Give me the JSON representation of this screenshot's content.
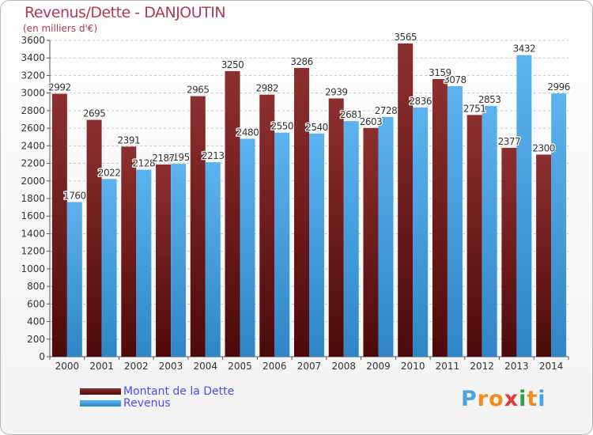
{
  "title": "Revenus/Dette - DANJOUTIN",
  "subtitle": "(en milliers d'€)",
  "logo": {
    "text": "Proxiti",
    "letters": [
      "P",
      "r",
      "o",
      "x",
      "i",
      "t",
      "i"
    ],
    "colors": [
      "#4aa3df",
      "#f28c1e",
      "#f28c1e",
      "#e23b3b",
      "#2e9e44",
      "#f28c1e",
      "#4aa3df"
    ]
  },
  "chart_data": {
    "type": "bar",
    "categories": [
      "2000",
      "2001",
      "2002",
      "2003",
      "2004",
      "2005",
      "2006",
      "2007",
      "2008",
      "2009",
      "2010",
      "2011",
      "2012",
      "2013",
      "2014"
    ],
    "series": [
      {
        "name": "Montant de la Dette",
        "color": "#7a1c1c",
        "values": [
          2992,
          2695,
          2391,
          2187,
          2965,
          3250,
          2982,
          3286,
          2939,
          2603,
          3565,
          3159,
          2751,
          2377,
          2300
        ],
        "labels": [
          "2992",
          "2695",
          "2391",
          "2187",
          "2965",
          "3250",
          "2982",
          "3286",
          "2939",
          "2603",
          "3565",
          "3159",
          "2751",
          "2377",
          "2300"
        ]
      },
      {
        "name": "Revenus",
        "color": "#4ea6e6",
        "values": [
          1760,
          2022,
          2128,
          2195,
          2213,
          2480,
          2550,
          2540,
          2681,
          2728,
          2836,
          3078,
          2853,
          3432,
          2996
        ],
        "labels": [
          "1760",
          "2022",
          "2128",
          "2195",
          "2213",
          "2480",
          "2550",
          "2540",
          "2681",
          "2728",
          "2836",
          "3078",
          "2853",
          "3432",
          "2996"
        ]
      }
    ],
    "ylim": [
      0,
      3600
    ],
    "yticks": [
      "0",
      "200",
      "400",
      "600",
      "800",
      "1000",
      "1200",
      "1400",
      "1600",
      "1800",
      "2000",
      "2200",
      "2400",
      "2600",
      "2800",
      "3000",
      "3200",
      "3400",
      "3600"
    ],
    "grid": true
  }
}
